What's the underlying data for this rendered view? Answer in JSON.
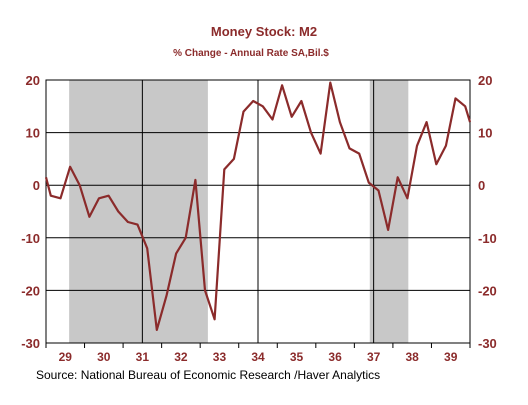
{
  "chart_data": {
    "type": "line",
    "title": "Money Stock: M2",
    "subtitle": "% Change - Annual Rate     SA,Bil.$",
    "source": "Source:  National Bureau of Economic Research /Haver Analytics",
    "ylim": [
      -30,
      20
    ],
    "yticks": [
      20,
      10,
      0,
      -10,
      -20,
      -30
    ],
    "xlim": [
      1929.0,
      1940.0
    ],
    "xtick_labels": [
      "29",
      "30",
      "31",
      "32",
      "33",
      "34",
      "35",
      "36",
      "37",
      "38",
      "39"
    ],
    "grid": true,
    "colors": {
      "line": "#8b2b2b",
      "recession": "#c8c8c8",
      "text": "#8b2b2b"
    },
    "recessions": [
      [
        1929.6,
        1933.2
      ],
      [
        1937.4,
        1938.4
      ]
    ],
    "vlines": [
      1931.5,
      1934.5,
      1937.5
    ],
    "series": [
      {
        "x": [
          1929.0,
          1929.125,
          1929.375,
          1929.625,
          1929.875,
          1930.125,
          1930.375,
          1930.625,
          1930.875,
          1931.125,
          1931.375,
          1931.625,
          1931.875,
          1932.125,
          1932.375,
          1932.625,
          1932.875,
          1933.125,
          1933.375,
          1933.625,
          1933.875,
          1934.125,
          1934.375,
          1934.625,
          1934.875,
          1935.125,
          1935.375,
          1935.625,
          1935.875,
          1936.125,
          1936.375,
          1936.625,
          1936.875,
          1937.125,
          1937.375,
          1937.625,
          1937.875,
          1938.125,
          1938.375,
          1938.625,
          1938.875,
          1939.125,
          1939.375,
          1939.625,
          1939.875,
          1940.0
        ],
        "values": [
          1.5,
          -2.0,
          -2.5,
          3.5,
          0.0,
          -6.0,
          -2.5,
          -2.0,
          -5.0,
          -7.0,
          -7.5,
          -12.0,
          -27.5,
          -21.0,
          -13.0,
          -10.0,
          1.0,
          -20.0,
          -25.5,
          3.0,
          5.0,
          14.0,
          16.0,
          15.0,
          12.5,
          19.0,
          13.0,
          16.0,
          10.0,
          6.0,
          19.5,
          12.0,
          7.0,
          6.0,
          0.5,
          -1.0,
          -8.5,
          1.5,
          -2.5,
          7.5,
          12.0,
          4.0,
          7.5,
          16.5,
          15.0,
          12.0
        ]
      }
    ]
  }
}
